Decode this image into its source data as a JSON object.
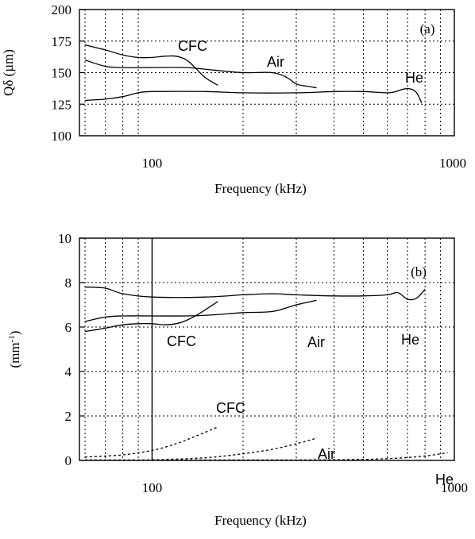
{
  "chart_data": [
    {
      "type": "line",
      "panel_label": "(a)",
      "xlabel": "Frequency (kHz)",
      "ylabel": "Qδ (µm)",
      "xscale": "log",
      "xlim": [
        60,
        1000
      ],
      "ylim": [
        100,
        200
      ],
      "x_ticks": [
        100,
        1000
      ],
      "x_tick_labels": [
        "100",
        "1000"
      ],
      "y_ticks": [
        100,
        125,
        150,
        175,
        200
      ],
      "y_tick_labels": [
        "100",
        "125",
        "150",
        "175",
        "200"
      ],
      "grid": true,
      "series": [
        {
          "name": "CFC",
          "style": "solid",
          "x": [
            60,
            70,
            80,
            90,
            100,
            110,
            120,
            130,
            140,
            150,
            165
          ],
          "y": [
            172,
            168,
            164,
            162,
            162,
            163,
            163,
            160,
            153,
            146,
            140
          ]
        },
        {
          "name": "Air",
          "style": "solid",
          "x": [
            60,
            70,
            80,
            100,
            130,
            160,
            200,
            250,
            280,
            300,
            330,
            350
          ],
          "y": [
            160,
            155,
            154,
            154,
            154,
            152,
            150,
            150,
            146,
            141,
            139,
            138
          ]
        },
        {
          "name": "He",
          "style": "solid",
          "x": [
            60,
            70,
            80,
            90,
            100,
            150,
            200,
            300,
            400,
            500,
            600,
            640,
            680,
            720,
            750,
            780
          ],
          "y": [
            128,
            129,
            131,
            134,
            135,
            135,
            134,
            134,
            135,
            135,
            134,
            135,
            137,
            137,
            134,
            126
          ]
        }
      ]
    },
    {
      "type": "line",
      "panel_label": "(b)",
      "xlabel": "Frequency (kHz)",
      "ylabel": "(mm",
      "ylabel_superscript": "-1",
      "ylabel_close": ")",
      "xscale": "log",
      "xlim": [
        60,
        1000
      ],
      "ylim": [
        0,
        10
      ],
      "x_ticks": [
        100,
        1000
      ],
      "x_tick_labels": [
        "100",
        "1000"
      ],
      "y_ticks": [
        0,
        2,
        4,
        6,
        8,
        10
      ],
      "y_tick_labels": [
        "0",
        "2",
        "4",
        "6",
        "8",
        "10"
      ],
      "grid": true,
      "series": [
        {
          "name": "He",
          "style": "solid",
          "x": [
            60,
            70,
            80,
            100,
            150,
            200,
            250,
            300,
            400,
            500,
            600,
            650,
            700,
            750,
            800
          ],
          "y": [
            7.8,
            7.75,
            7.5,
            7.35,
            7.35,
            7.45,
            7.5,
            7.45,
            7.4,
            7.4,
            7.45,
            7.55,
            7.25,
            7.3,
            7.7
          ]
        },
        {
          "name": "Air",
          "style": "solid",
          "x": [
            60,
            70,
            80,
            100,
            130,
            160,
            200,
            250,
            300,
            350
          ],
          "y": [
            6.25,
            6.45,
            6.5,
            6.5,
            6.5,
            6.55,
            6.65,
            6.7,
            7.0,
            7.2
          ]
        },
        {
          "name": "CFC",
          "style": "solid",
          "x": [
            60,
            70,
            80,
            90,
            100,
            110,
            120,
            130,
            145,
            165
          ],
          "y": [
            5.8,
            5.95,
            6.1,
            6.15,
            6.15,
            6.1,
            6.15,
            6.3,
            6.65,
            7.15
          ]
        },
        {
          "name": "CFC",
          "style": "dashed",
          "x": [
            60,
            80,
            100,
            120,
            140,
            165
          ],
          "y": [
            0.15,
            0.25,
            0.45,
            0.75,
            1.1,
            1.5
          ]
        },
        {
          "name": "Air",
          "style": "dashed",
          "x": [
            100,
            150,
            200,
            250,
            300,
            350
          ],
          "y": [
            0.02,
            0.12,
            0.3,
            0.5,
            0.75,
            1.0
          ]
        },
        {
          "name": "He",
          "style": "dashed",
          "x": [
            60,
            200,
            400,
            600,
            800,
            950
          ],
          "y": [
            0.02,
            0.02,
            0.03,
            0.08,
            0.2,
            0.35
          ]
        }
      ]
    }
  ]
}
